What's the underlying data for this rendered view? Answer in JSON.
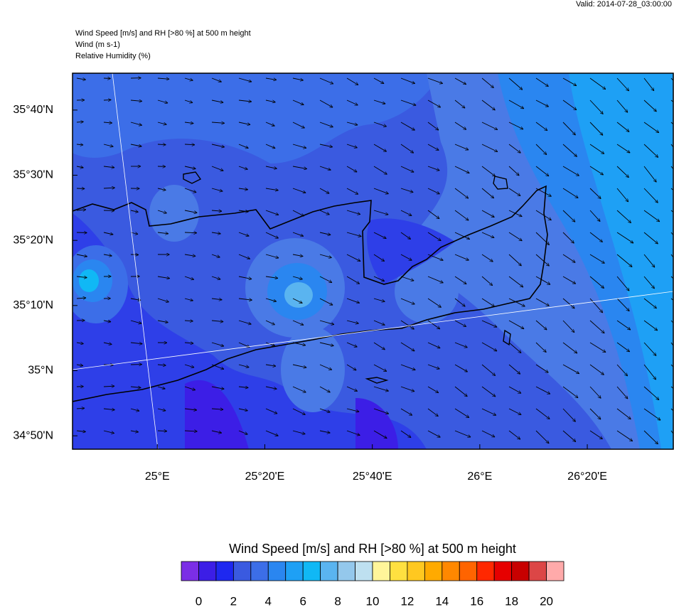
{
  "header": {
    "valid": "Valid: 2014-07-28_03:00:00"
  },
  "titles": [
    "Wind Speed [m/s] and RH [>80 %] at 500 m height",
    "Wind   (m s-1)",
    "Relative Humidity   (%)"
  ],
  "map": {
    "lonlim": [
      24.737,
      26.6
    ],
    "latlim": [
      34.799,
      35.761
    ],
    "lonticks": [
      {
        "value": 25,
        "label": "25°E"
      },
      {
        "value": 25.3333,
        "label": "25°20'E"
      },
      {
        "value": 25.6667,
        "label": "25°40'E"
      },
      {
        "value": 26,
        "label": "26°E"
      },
      {
        "value": 26.3333,
        "label": "26°20'E"
      }
    ],
    "latticks": [
      {
        "value": 35.6667,
        "label": "35°40'N"
      },
      {
        "value": 35.5,
        "label": "35°30'N"
      },
      {
        "value": 35.3333,
        "label": "35°20'N"
      },
      {
        "value": 35.1667,
        "label": "35°10'N"
      },
      {
        "value": 35,
        "label": "35°N"
      },
      {
        "value": 34.8333,
        "label": "34°50'N"
      }
    ]
  },
  "colorbar": {
    "title": "Wind Speed [m/s] and RH [>80 %] at 500 m height",
    "lim": [
      -1,
      21
    ],
    "colors": [
      "#7b2ee6",
      "#3c1ee6",
      "#1e28f0",
      "#3a5ae0",
      "#3c6ee8",
      "#2a86f0",
      "#1ea0f5",
      "#10b8f5",
      "#5ab4f0",
      "#94c8ec",
      "#bee0f0",
      "#fff59a",
      "#ffe040",
      "#ffc820",
      "#ffaa00",
      "#ff8800",
      "#ff6400",
      "#ff2800",
      "#e60000",
      "#c80000",
      "#dc4646",
      "#ffaaaa"
    ],
    "ticks": [
      0,
      2,
      4,
      6,
      8,
      10,
      12,
      14,
      16,
      18,
      20
    ]
  }
}
